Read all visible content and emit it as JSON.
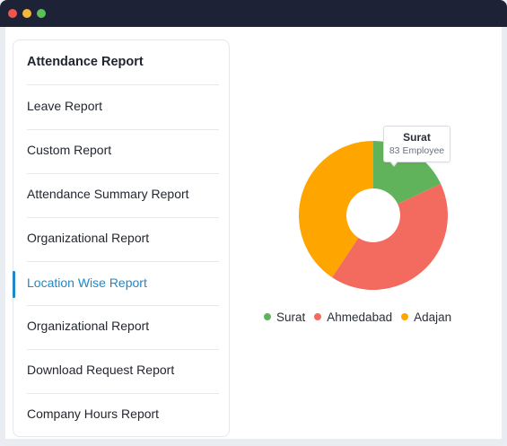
{
  "window": {
    "controls": [
      "close",
      "minimize",
      "maximize"
    ]
  },
  "sidebar": {
    "title": "Attendance Report",
    "items": [
      {
        "label": "Leave Report",
        "active": false
      },
      {
        "label": "Custom Report",
        "active": false
      },
      {
        "label": "Attendance Summary Report",
        "active": false
      },
      {
        "label": "Organizational Report",
        "active": false
      },
      {
        "label": "Location Wise Report",
        "active": true
      },
      {
        "label": "Organizational Report",
        "active": false
      },
      {
        "label": "Download Request Report",
        "active": false
      },
      {
        "label": "Company Hours Report",
        "active": false
      }
    ]
  },
  "colors": {
    "surat": "#61b35b",
    "ahmedabad": "#f26b5e",
    "adajan": "#ffa500",
    "accent": "#1e88c8"
  },
  "tooltip": {
    "title": "Surat",
    "value": "83 Employee"
  },
  "chart_data": {
    "type": "pie",
    "categories": [
      "Surat",
      "Ahmedabad",
      "Adajan"
    ],
    "values": [
      83,
      190,
      187
    ],
    "colors": [
      "#61b35b",
      "#f26b5e",
      "#ffa500"
    ],
    "donut": true,
    "legend": "bottom"
  }
}
